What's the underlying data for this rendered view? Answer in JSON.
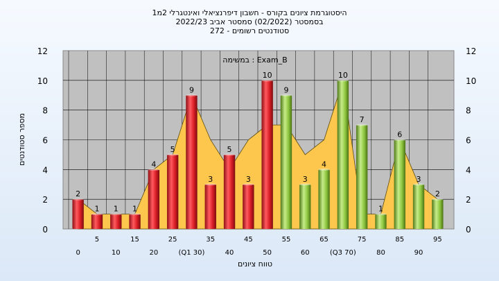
{
  "chart_data": {
    "type": "bar",
    "title": [
      "היסטוגרמת ציונים בקורס - חשבון דיפרנציאלי ואינטגרלי 2מ1",
      "בסמסטר  (02/2022)  סמסטר אביב 2022/23",
      "סטודנטים רשומים - 272"
    ],
    "subtitle": "במשימה : Exam_B",
    "xlabel": "טווח ציונים",
    "ylabel": "מספר סטודנטים",
    "ylim": [
      0,
      12
    ],
    "yticks": [
      0,
      2,
      4,
      6,
      8,
      10,
      12
    ],
    "grid": true,
    "categories": [
      "0",
      "5",
      "10",
      "15",
      "20",
      "25",
      "30",
      "35",
      "40",
      "45",
      "50",
      "55",
      "60",
      "65",
      "70",
      "75",
      "80",
      "85",
      "90",
      "95"
    ],
    "x_tick_labels": [
      "0",
      "5",
      "10",
      "15",
      "20",
      "25",
      "(Q1 30)",
      "35",
      "40",
      "45",
      "50",
      "55",
      "60",
      "65",
      "(Q3 70)",
      "75",
      "80",
      "85",
      "90",
      "95"
    ],
    "values": [
      2,
      1,
      1,
      1,
      4,
      5,
      9,
      3,
      5,
      3,
      10,
      9,
      3,
      4,
      10,
      7,
      1,
      6,
      3,
      2
    ],
    "data_labels": [
      "2",
      "1",
      "1",
      "1",
      "4",
      "5",
      "9",
      "3",
      "5",
      "3",
      "10",
      "9",
      "3",
      "4",
      "10",
      "7",
      "1",
      "6",
      "3",
      "2"
    ],
    "area_series": [
      2,
      1,
      1,
      1,
      4,
      5,
      9,
      6,
      4,
      6,
      7,
      7,
      5,
      6,
      10,
      1,
      1,
      6,
      3,
      2
    ],
    "colors": {
      "fail": "#e0262e",
      "pass": "#8ec63f",
      "area": "#fdc74e",
      "plot_bg": "#c0c0c0"
    },
    "pass_threshold": 55
  }
}
